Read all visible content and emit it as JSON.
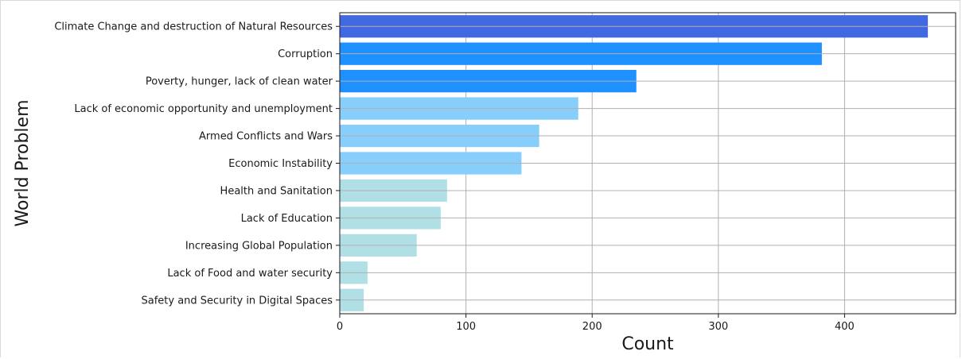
{
  "chart_data": {
    "type": "bar",
    "orientation": "horizontal",
    "title": "",
    "xlabel": "Count",
    "ylabel": "World Problem",
    "xlim": [
      0,
      488
    ],
    "xticks": [
      0,
      100,
      200,
      300,
      400
    ],
    "grid": true,
    "categories": [
      "Climate Change and destruction of Natural Resources",
      "Corruption",
      "Poverty, hunger, lack of clean water",
      "Lack of economic opportunity and unemployment",
      "Armed Conflicts and Wars",
      "Economic Instability",
      "Health and Sanitation",
      "Lack of Education",
      "Increasing Global Population",
      "Lack of Food and water security",
      "Safety and Security in Digital Spaces"
    ],
    "values": [
      466,
      382,
      235,
      189,
      158,
      144,
      85,
      80,
      61,
      22,
      19
    ],
    "colors": [
      "#4169e1",
      "#1e90ff",
      "#1e90ff",
      "#87cefa",
      "#87cefa",
      "#87cefa",
      "#b0e0e6",
      "#b0e0e6",
      "#b0e0e6",
      "#b0e0e6",
      "#b0e0e6"
    ]
  }
}
